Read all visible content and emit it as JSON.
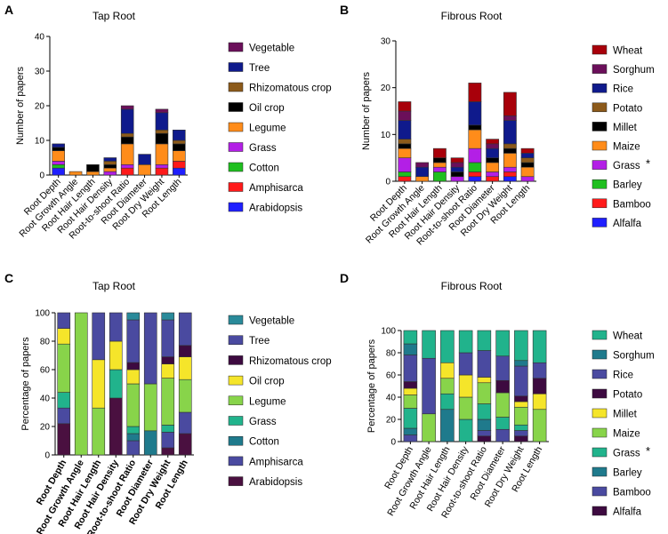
{
  "chart_data": [
    {
      "panel": "A",
      "type": "bar",
      "stacked": true,
      "title": "Tap Root",
      "xlabel": "",
      "ylabel": "Number of papers",
      "ylim": [
        0,
        40
      ],
      "yticks": [
        0,
        10,
        20,
        30,
        40
      ],
      "categories": [
        "Root Depth",
        "Root Growth Angle",
        "Root Hair Length",
        "Root Hair Density",
        "Root-to-shoot Ratio",
        "Root Diameter",
        "Root Dry Weight",
        "Root Length"
      ],
      "series": [
        {
          "name": "Arabidopsis",
          "color": "#1f1fff",
          "values": [
            2,
            0,
            0,
            0,
            0,
            0,
            0,
            2
          ]
        },
        {
          "name": "Amphisarca",
          "color": "#ff1a1a",
          "values": [
            0,
            0,
            0,
            0,
            2,
            0,
            2,
            2
          ]
        },
        {
          "name": "Cotton",
          "color": "#1fbf1f",
          "values": [
            1,
            0,
            0,
            0,
            0,
            0,
            0,
            0
          ]
        },
        {
          "name": "Grass",
          "color": "#b31fe6",
          "values": [
            1,
            0,
            0,
            1,
            1,
            0,
            1,
            0
          ]
        },
        {
          "name": "Legume",
          "color": "#ff8c1a",
          "values": [
            3,
            1,
            1,
            1,
            6,
            3,
            6,
            3
          ]
        },
        {
          "name": "Oil crop",
          "color": "#000000",
          "values": [
            1,
            0,
            2,
            1,
            2,
            0,
            3,
            2
          ]
        },
        {
          "name": "Rhizomatous crop",
          "color": "#8c5a1a",
          "values": [
            0,
            0,
            0,
            1,
            1,
            0,
            1,
            1
          ]
        },
        {
          "name": "Tree",
          "color": "#0f1a8c",
          "values": [
            1,
            0,
            0,
            1,
            7,
            3,
            5,
            3
          ]
        },
        {
          "name": "Vegetable",
          "color": "#6b0f5a",
          "values": [
            0,
            0,
            0,
            0,
            1,
            0,
            1,
            0
          ]
        }
      ]
    },
    {
      "panel": "B",
      "type": "bar",
      "stacked": true,
      "title": "Fibrous Root",
      "xlabel": "",
      "ylabel": "Number of papers",
      "ylim": [
        0,
        30
      ],
      "yticks": [
        0,
        10,
        20,
        30
      ],
      "categories": [
        "Root Depth",
        "Root Growth Angle",
        "Root Hair Length",
        "Root Hair Density",
        "Root-to-shoot Ratio",
        "Root Diameter",
        "Root Dry Weight",
        "Root Length"
      ],
      "series": [
        {
          "name": "Alfalfa",
          "color": "#1f1fff",
          "values": [
            0,
            0,
            0,
            0,
            1,
            0,
            1,
            0
          ]
        },
        {
          "name": "Bamboo",
          "color": "#ff1a1a",
          "values": [
            1,
            0,
            0,
            0,
            1,
            1,
            1,
            0
          ]
        },
        {
          "name": "Barley",
          "color": "#1fbf1f",
          "values": [
            1,
            0,
            2,
            0,
            2,
            0,
            0,
            0
          ]
        },
        {
          "name": "Grass",
          "color": "#b31fe6",
          "values": [
            3,
            0,
            1,
            1,
            3,
            1,
            1,
            1
          ]
        },
        {
          "name": "Maize",
          "color": "#ff8c1a",
          "values": [
            2,
            1,
            1,
            0,
            4,
            2,
            3,
            2
          ]
        },
        {
          "name": "Millet",
          "color": "#000000",
          "values": [
            1,
            0,
            1,
            1,
            1,
            1,
            1,
            1
          ]
        },
        {
          "name": "Potato",
          "color": "#8c5a1a",
          "values": [
            1,
            0,
            0,
            0,
            0,
            0,
            1,
            1
          ]
        },
        {
          "name": "Rice",
          "color": "#0f1a8c",
          "values": [
            4,
            2,
            0,
            1,
            5,
            2,
            5,
            1
          ]
        },
        {
          "name": "Sorghum",
          "color": "#6b0f5a",
          "values": [
            2,
            1,
            0,
            1,
            0,
            1,
            1,
            0
          ]
        },
        {
          "name": "Wheat",
          "color": "#a8000a",
          "values": [
            2,
            0,
            2,
            1,
            4,
            1,
            5,
            1
          ]
        }
      ]
    },
    {
      "panel": "C",
      "type": "bar",
      "stacked": true,
      "percent": true,
      "title": "Tap Root",
      "xlabel": "",
      "ylabel": "Percentage of papers",
      "ylim": [
        0,
        100
      ],
      "yticks": [
        0,
        20,
        40,
        60,
        80,
        100
      ],
      "categories": [
        "Root Depth",
        "Root Growth Angle",
        "Root Hair Length",
        "Root Hair Density",
        "Root-to-shoot Ratio",
        "Root Diameter",
        "Root Dry Weight",
        "Root Length"
      ],
      "series": [
        {
          "name": "Arabidopsis",
          "color": "#4a1040",
          "values": [
            22,
            0,
            0,
            40,
            0,
            0,
            5,
            15
          ]
        },
        {
          "name": "Amphisarca",
          "color": "#4a4aa0",
          "values": [
            11,
            0,
            0,
            0,
            10,
            0,
            11,
            15
          ]
        },
        {
          "name": "Cotton",
          "color": "#1f7a8c",
          "values": [
            0,
            0,
            0,
            0,
            5,
            17,
            0,
            0
          ]
        },
        {
          "name": "Grass",
          "color": "#21b38c",
          "values": [
            11,
            0,
            0,
            20,
            5,
            0,
            5,
            0
          ]
        },
        {
          "name": "Legume",
          "color": "#88d44a",
          "values": [
            34,
            100,
            33,
            0,
            30,
            33,
            33,
            23
          ]
        },
        {
          "name": "Oil crop",
          "color": "#f5e52a",
          "values": [
            11,
            0,
            34,
            20,
            10,
            0,
            10,
            16
          ]
        },
        {
          "name": "Rhizomatous crop",
          "color": "#3d0a40",
          "values": [
            0,
            0,
            0,
            0,
            5,
            0,
            5,
            8
          ]
        },
        {
          "name": "Tree",
          "color": "#4a4aa0",
          "values": [
            11,
            0,
            33,
            20,
            30,
            50,
            26,
            23
          ]
        },
        {
          "name": "Vegetable",
          "color": "#2a8a9a",
          "values": [
            0,
            0,
            0,
            0,
            5,
            0,
            5,
            0
          ]
        }
      ]
    },
    {
      "panel": "D",
      "type": "bar",
      "stacked": true,
      "percent": true,
      "title": "Fibrous Root",
      "xlabel": "",
      "ylabel": "Percentage of papers",
      "ylim": [
        0,
        100
      ],
      "yticks": [
        0,
        20,
        40,
        60,
        80,
        100
      ],
      "categories": [
        "Root Depth",
        "Root Growth Angle",
        "Root Hair Length",
        "Root Hair Density",
        "Root-to-shoot Ratio",
        "Root Diameter",
        "Root Dry Weight",
        "Root Length"
      ],
      "series": [
        {
          "name": "Alfalfa",
          "color": "#3d0a40",
          "values": [
            0,
            0,
            0,
            0,
            5,
            0,
            5,
            0
          ]
        },
        {
          "name": "Bamboo",
          "color": "#4a4aa0",
          "values": [
            6,
            0,
            0,
            0,
            5,
            11,
            5,
            0
          ]
        },
        {
          "name": "Barley",
          "color": "#1f7a8c",
          "values": [
            6,
            0,
            29,
            0,
            10,
            0,
            0,
            0
          ]
        },
        {
          "name": "Grass",
          "color": "#21b38c",
          "values": [
            18,
            0,
            14,
            20,
            14,
            11,
            5,
            0
          ]
        },
        {
          "name": "Maize",
          "color": "#88d44a",
          "values": [
            12,
            25,
            14,
            20,
            19,
            22,
            16,
            29
          ]
        },
        {
          "name": "Millet",
          "color": "#f5e52a",
          "values": [
            6,
            0,
            14,
            20,
            5,
            0,
            5,
            14
          ]
        },
        {
          "name": "Potato",
          "color": "#3d0a40",
          "values": [
            6,
            0,
            0,
            0,
            0,
            11,
            5,
            14
          ]
        },
        {
          "name": "Rice",
          "color": "#4a4aa0",
          "values": [
            24,
            50,
            0,
            20,
            24,
            22,
            27,
            14
          ]
        },
        {
          "name": "Sorghum",
          "color": "#1f7a8c",
          "values": [
            10,
            0,
            0,
            0,
            0,
            0,
            5,
            0
          ]
        },
        {
          "name": "Wheat",
          "color": "#21b38c",
          "values": [
            12,
            25,
            29,
            20,
            18,
            23,
            27,
            29
          ]
        }
      ]
    }
  ],
  "legends": [
    {
      "panel": "A",
      "items": [
        {
          "name": "Vegetable",
          "color": "#6b0f5a"
        },
        {
          "name": "Tree",
          "color": "#0f1a8c"
        },
        {
          "name": "Rhizomatous crop",
          "color": "#8c5a1a"
        },
        {
          "name": "Oil crop",
          "color": "#000000"
        },
        {
          "name": "Legume",
          "color": "#ff8c1a"
        },
        {
          "name": "Grass",
          "color": "#b31fe6"
        },
        {
          "name": "Cotton",
          "color": "#1fbf1f"
        },
        {
          "name": "Amphisarca",
          "color": "#ff1a1a"
        },
        {
          "name": "Arabidopsis",
          "color": "#1f1fff"
        }
      ]
    },
    {
      "panel": "B",
      "items": [
        {
          "name": "Wheat",
          "color": "#a8000a"
        },
        {
          "name": "Sorghum",
          "color": "#6b0f5a"
        },
        {
          "name": "Rice",
          "color": "#0f1a8c"
        },
        {
          "name": "Potato",
          "color": "#8c5a1a"
        },
        {
          "name": "Millet",
          "color": "#000000"
        },
        {
          "name": "Maize",
          "color": "#ff8c1a"
        },
        {
          "name": "Grass",
          "color": "#b31fe6",
          "mark": "*"
        },
        {
          "name": "Barley",
          "color": "#1fbf1f"
        },
        {
          "name": "Bamboo",
          "color": "#ff1a1a"
        },
        {
          "name": "Alfalfa",
          "color": "#1f1fff"
        }
      ]
    },
    {
      "panel": "C",
      "items": [
        {
          "name": "Vegetable",
          "color": "#2a8a9a"
        },
        {
          "name": "Tree",
          "color": "#4a4aa0"
        },
        {
          "name": "Rhizomatous crop",
          "color": "#3d0a40"
        },
        {
          "name": "Oil crop",
          "color": "#f5e52a"
        },
        {
          "name": "Legume",
          "color": "#88d44a"
        },
        {
          "name": "Grass",
          "color": "#21b38c"
        },
        {
          "name": "Cotton",
          "color": "#1f7a8c"
        },
        {
          "name": "Amphisarca",
          "color": "#4a4aa0"
        },
        {
          "name": "Arabidopsis",
          "color": "#4a1040"
        }
      ]
    },
    {
      "panel": "D",
      "items": [
        {
          "name": "Wheat",
          "color": "#21b38c"
        },
        {
          "name": "Sorghum",
          "color": "#1f7a8c"
        },
        {
          "name": "Rice",
          "color": "#4a4aa0"
        },
        {
          "name": "Potato",
          "color": "#3d0a40"
        },
        {
          "name": "Millet",
          "color": "#f5e52a"
        },
        {
          "name": "Maize",
          "color": "#88d44a"
        },
        {
          "name": "Grass",
          "color": "#21b38c",
          "mark": "*"
        },
        {
          "name": "Barley",
          "color": "#1f7a8c"
        },
        {
          "name": "Bamboo",
          "color": "#4a4aa0"
        },
        {
          "name": "Alfalfa",
          "color": "#3d0a40"
        }
      ]
    }
  ]
}
